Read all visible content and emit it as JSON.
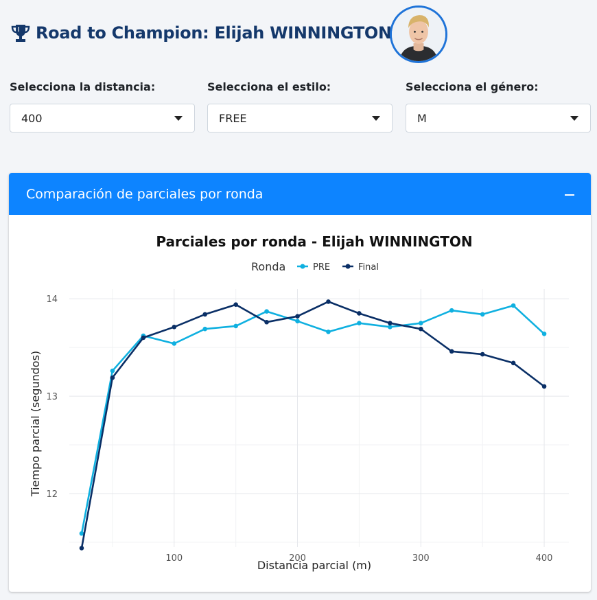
{
  "header": {
    "title": "Road to Champion: Elijah WINNINGTON",
    "trophy_icon": "trophy-icon",
    "avatar_icon": "athlete-avatar"
  },
  "filters": {
    "distance": {
      "label": "Selecciona la distancia:",
      "value": "400"
    },
    "style": {
      "label": "Selecciona el estilo:",
      "value": "FREE"
    },
    "gender": {
      "label": "Selecciona el género:",
      "value": "M"
    }
  },
  "card": {
    "title": "Comparación de parciales por ronda",
    "accent_color": "#0d84ff"
  },
  "chart_data": {
    "type": "line",
    "title": "Parciales por ronda - Elijah WINNINGTON",
    "xlabel": "Distancia parcial (m)",
    "ylabel": "Tiempo parcial (segundos)",
    "legend_title": "Ronda",
    "legend_position": "top",
    "x": [
      25,
      50,
      75,
      100,
      125,
      150,
      175,
      200,
      225,
      250,
      275,
      300,
      325,
      350,
      375,
      400
    ],
    "x_ticks": [
      "100",
      "200",
      "300",
      "400"
    ],
    "y_ticks": [
      "12",
      "13",
      "14"
    ],
    "xlim": [
      15,
      420
    ],
    "ylim": [
      11.45,
      14.1
    ],
    "grid": true,
    "series": [
      {
        "name": "PRE",
        "color": "#0fb0e0",
        "values": [
          11.59,
          13.26,
          13.62,
          13.54,
          13.69,
          13.72,
          13.87,
          13.77,
          13.66,
          13.75,
          13.71,
          13.75,
          13.88,
          13.84,
          13.93,
          13.64
        ]
      },
      {
        "name": "Final",
        "color": "#0a2f66",
        "values": [
          11.44,
          13.19,
          13.6,
          13.71,
          13.84,
          13.94,
          13.76,
          13.82,
          13.97,
          13.85,
          13.75,
          13.69,
          13.46,
          13.43,
          13.34,
          13.1
        ]
      }
    ]
  }
}
